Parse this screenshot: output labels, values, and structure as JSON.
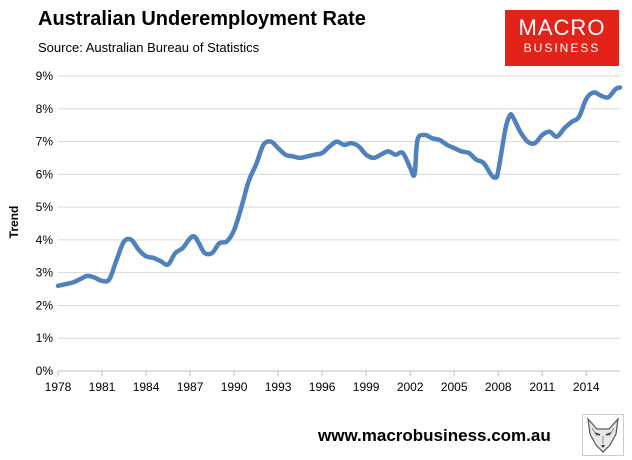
{
  "header": {
    "title": "Australian Underemployment Rate",
    "subtitle": "Source: Australian Bureau of Statistics"
  },
  "logo": {
    "line1": "MACRO",
    "line2": "BUSINESS"
  },
  "footer": {
    "url": "www.macrobusiness.com.au"
  },
  "chart_data": {
    "type": "line",
    "title": "Australian Underemployment Rate",
    "subtitle": "Source: Australian Bureau of Statistics",
    "ylabel": "Trend",
    "xlabel": "",
    "xlim": [
      1978,
      2016.3
    ],
    "ylim": [
      0,
      9
    ],
    "x_ticks": [
      "1978",
      "1981",
      "1984",
      "1987",
      "1990",
      "1993",
      "1996",
      "1999",
      "2002",
      "2005",
      "2008",
      "2011",
      "2014"
    ],
    "y_ticks": [
      "0%",
      "1%",
      "2%",
      "3%",
      "4%",
      "5%",
      "6%",
      "7%",
      "8%",
      "9%"
    ],
    "grid": "horizontal",
    "line_color": "#4f81bd",
    "series": [
      {
        "x": [
          1978.0,
          1979.0,
          1979.5,
          1980.0,
          1980.5,
          1981.0,
          1981.5,
          1982.0,
          1982.5,
          1983.0,
          1983.5,
          1984.0,
          1984.5,
          1985.0,
          1985.5,
          1986.0,
          1986.5,
          1987.0,
          1987.3,
          1987.6,
          1988.0,
          1988.5,
          1989.0,
          1989.5,
          1990.0,
          1990.5,
          1991.0,
          1991.5,
          1992.0,
          1992.5,
          1993.0,
          1993.5,
          1994.0,
          1994.5,
          1995.0,
          1995.5,
          1996.0,
          1996.5,
          1997.0,
          1997.5,
          1998.0,
          1998.5,
          1999.0,
          1999.5,
          2000.0,
          2000.5,
          2001.0,
          2001.5,
          2002.0,
          2002.3,
          2002.5,
          2003.0,
          2003.5,
          2004.0,
          2004.5,
          2005.0,
          2005.5,
          2006.0,
          2006.5,
          2007.0,
          2007.5,
          2007.8,
          2008.0,
          2008.5,
          2008.8,
          2009.0,
          2009.5,
          2010.0,
          2010.5,
          2011.0,
          2011.5,
          2012.0,
          2012.5,
          2013.0,
          2013.5,
          2014.0,
          2014.5,
          2015.0,
          2015.5,
          2016.0,
          2016.3
        ],
        "y": [
          2.6,
          2.7,
          2.8,
          2.9,
          2.85,
          2.75,
          2.8,
          3.4,
          3.95,
          4.0,
          3.7,
          3.5,
          3.45,
          3.35,
          3.25,
          3.6,
          3.75,
          4.05,
          4.1,
          3.9,
          3.6,
          3.6,
          3.9,
          3.95,
          4.3,
          5.0,
          5.8,
          6.3,
          6.9,
          7.0,
          6.8,
          6.6,
          6.55,
          6.5,
          6.55,
          6.6,
          6.65,
          6.85,
          7.0,
          6.9,
          6.95,
          6.85,
          6.6,
          6.5,
          6.6,
          6.7,
          6.6,
          6.65,
          6.2,
          6.0,
          7.05,
          7.2,
          7.1,
          7.05,
          6.9,
          6.8,
          6.7,
          6.65,
          6.45,
          6.35,
          6.0,
          5.9,
          6.1,
          7.4,
          7.8,
          7.75,
          7.3,
          7.0,
          6.95,
          7.2,
          7.3,
          7.15,
          7.4,
          7.6,
          7.75,
          8.3,
          8.5,
          8.4,
          8.35,
          8.6,
          8.65
        ]
      }
    ]
  }
}
